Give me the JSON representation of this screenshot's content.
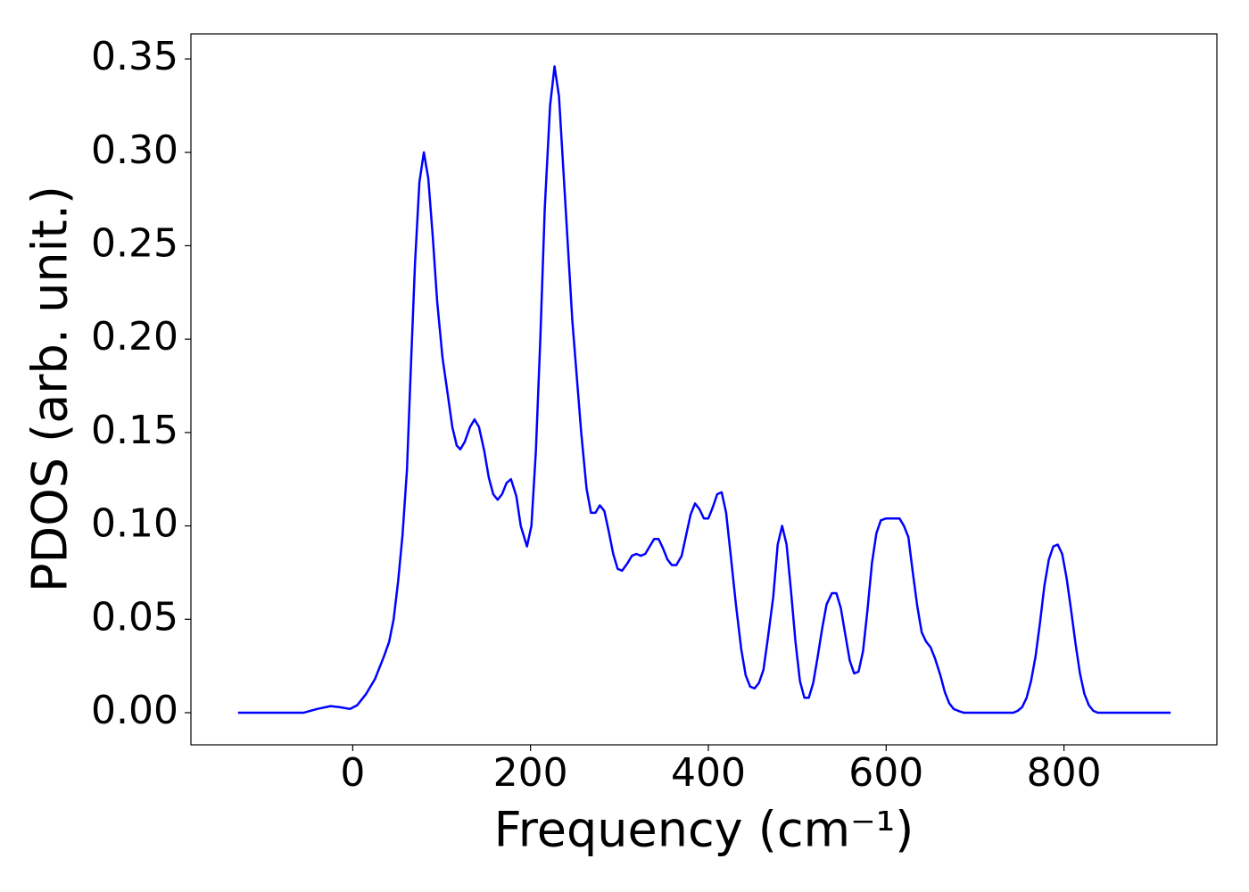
{
  "chart_data": {
    "type": "line",
    "xlabel": "Frequency (cm⁻¹)",
    "ylabel": "PDOS (arb. unit.)",
    "xlim": [
      -182,
      972
    ],
    "ylim": [
      -0.0172,
      0.3634
    ],
    "xticks": [
      0,
      200,
      400,
      600,
      800
    ],
    "yticks": [
      {
        "value": 0,
        "label": "0.00"
      },
      {
        "value": 0.05,
        "label": "0.05"
      },
      {
        "value": 0.1,
        "label": "0.10"
      },
      {
        "value": 0.15,
        "label": "0.15"
      },
      {
        "value": 0.2,
        "label": "0.20"
      },
      {
        "value": 0.25,
        "label": "0.25"
      },
      {
        "value": 0.3,
        "label": "0.30"
      },
      {
        "value": 0.35,
        "label": "0.35"
      }
    ],
    "grid": false,
    "series": [
      {
        "color": "#0000ff",
        "x": [
          -129,
          -55,
          -40,
          -25,
          -15,
          -3,
          5,
          15,
          25,
          35,
          41,
          46,
          51,
          56,
          61,
          65,
          70,
          75,
          80,
          85,
          90,
          95,
          101,
          107,
          112,
          117,
          121,
          126,
          132,
          137,
          142,
          148,
          153,
          158,
          163,
          168,
          173,
          178,
          184,
          189,
          196,
          201,
          206,
          211,
          216,
          222,
          227,
          232,
          237,
          242,
          247,
          252,
          257,
          263,
          268,
          273,
          278,
          283,
          288,
          293,
          298,
          303,
          309,
          314,
          319,
          324,
          329,
          334,
          339,
          344,
          349,
          354,
          359,
          364,
          370,
          375,
          380,
          385,
          390,
          395,
          400,
          405,
          410,
          415,
          420,
          425,
          431,
          437,
          442,
          447,
          452,
          457,
          462,
          467,
          473,
          478,
          483,
          488,
          493,
          498,
          503,
          508,
          513,
          518,
          523,
          528,
          533,
          539,
          544,
          549,
          554,
          559,
          564,
          569,
          574,
          579,
          584,
          589,
          594,
          600,
          605,
          610,
          615,
          620,
          625,
          630,
          635,
          640,
          645,
          650,
          655,
          661,
          666,
          671,
          676,
          681,
          687,
          743,
          748,
          753,
          758,
          763,
          768,
          773,
          778,
          783,
          788,
          793,
          798,
          803,
          808,
          813,
          818,
          823,
          828,
          833,
          838,
          920
        ],
        "values": [
          0,
          0,
          0.002,
          0.0035,
          0.003,
          0.002,
          0.004,
          0.01,
          0.018,
          0.03,
          0.038,
          0.05,
          0.07,
          0.095,
          0.13,
          0.18,
          0.24,
          0.284,
          0.3,
          0.286,
          0.255,
          0.22,
          0.19,
          0.17,
          0.153,
          0.143,
          0.141,
          0.145,
          0.153,
          0.157,
          0.153,
          0.14,
          0.126,
          0.117,
          0.114,
          0.117,
          0.123,
          0.125,
          0.116,
          0.1,
          0.089,
          0.1,
          0.14,
          0.2,
          0.27,
          0.325,
          0.346,
          0.33,
          0.29,
          0.25,
          0.21,
          0.18,
          0.15,
          0.12,
          0.107,
          0.107,
          0.111,
          0.108,
          0.097,
          0.085,
          0.077,
          0.076,
          0.08,
          0.084,
          0.085,
          0.084,
          0.085,
          0.089,
          0.093,
          0.093,
          0.088,
          0.082,
          0.079,
          0.079,
          0.084,
          0.095,
          0.106,
          0.112,
          0.109,
          0.104,
          0.104,
          0.11,
          0.117,
          0.118,
          0.107,
          0.085,
          0.058,
          0.034,
          0.02,
          0.014,
          0.013,
          0.016,
          0.023,
          0.04,
          0.062,
          0.09,
          0.1,
          0.09,
          0.065,
          0.038,
          0.017,
          0.008,
          0.008,
          0.016,
          0.03,
          0.045,
          0.058,
          0.064,
          0.064,
          0.056,
          0.042,
          0.028,
          0.021,
          0.022,
          0.033,
          0.055,
          0.08,
          0.096,
          0.103,
          0.104,
          0.104,
          0.104,
          0.104,
          0.1,
          0.094,
          0.075,
          0.057,
          0.043,
          0.038,
          0.035,
          0.029,
          0.02,
          0.011,
          0.005,
          0.002,
          0.001,
          0,
          0,
          0.001,
          0.003,
          0.008,
          0.017,
          0.03,
          0.048,
          0.068,
          0.082,
          0.089,
          0.09,
          0.085,
          0.072,
          0.055,
          0.037,
          0.021,
          0.01,
          0.004,
          0.001,
          0,
          0
        ]
      }
    ]
  }
}
